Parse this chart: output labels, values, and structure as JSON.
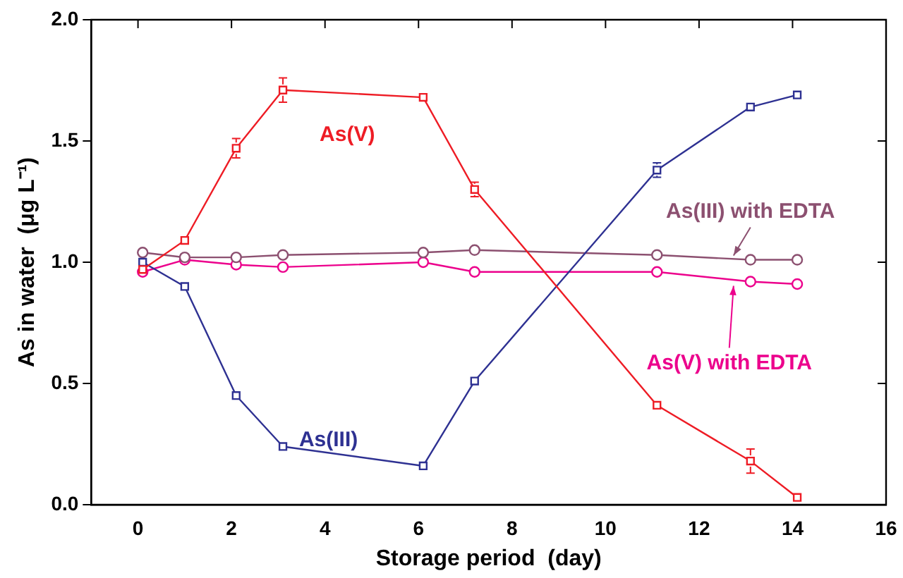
{
  "chart_data": {
    "type": "line",
    "xlabel": "Storage period  (day)",
    "ylabel": "As in water  (μg L⁻¹)",
    "x": [
      0.1,
      1,
      2.1,
      3.1,
      6.1,
      7.2,
      11.1,
      13.1,
      14.1
    ],
    "xlim": [
      -1,
      16
    ],
    "xticks": [
      0,
      2,
      4,
      6,
      8,
      10,
      12,
      14,
      16
    ],
    "ylim": [
      0,
      2
    ],
    "yticks": [
      {
        "value": 0,
        "label": "0.0"
      },
      {
        "value": 0.5,
        "label": "0.5"
      },
      {
        "value": 1,
        "label": "1.0"
      },
      {
        "value": 1.5,
        "label": "1.5"
      },
      {
        "value": 2,
        "label": "2.0"
      }
    ],
    "grid": false,
    "legend": false,
    "line_style": "solid",
    "series": [
      {
        "name": "As(V)",
        "color": "#ee1c25",
        "marker": "square",
        "values": [
          0.97,
          1.09,
          1.47,
          1.71,
          1.68,
          1.3,
          0.41,
          0.18,
          0.03
        ],
        "errors": [
          null,
          null,
          0.04,
          0.05,
          null,
          0.03,
          null,
          0.05,
          null
        ]
      },
      {
        "name": "As(III)",
        "color": "#2e3192",
        "marker": "square",
        "values": [
          1.0,
          0.9,
          0.45,
          0.24,
          0.16,
          0.51,
          1.38,
          1.64,
          1.69
        ],
        "errors": [
          null,
          null,
          null,
          null,
          null,
          null,
          0.03,
          null,
          null
        ]
      },
      {
        "name": "As(III) with EDTA",
        "color": "#8c5070",
        "marker": "circle",
        "values": [
          1.04,
          1.02,
          1.02,
          1.03,
          1.04,
          1.05,
          1.03,
          1.01,
          1.01
        ]
      },
      {
        "name": "As(V) with EDTA",
        "color": "#ec008c",
        "marker": "circle",
        "values": [
          0.96,
          1.01,
          0.99,
          0.98,
          1.0,
          0.96,
          0.96,
          0.92,
          0.91
        ]
      }
    ]
  }
}
